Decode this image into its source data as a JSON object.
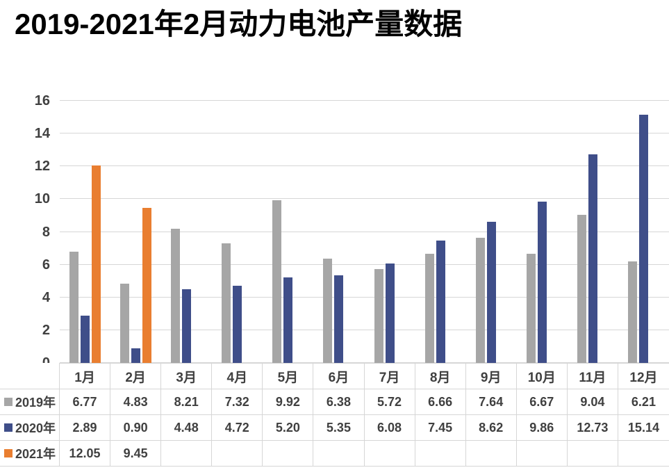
{
  "title": "2019-2021年2月动力电池产量数据",
  "chart_data": {
    "type": "bar",
    "title": "2019-2021年2月动力电池产量数据",
    "categories": [
      "1月",
      "2月",
      "3月",
      "4月",
      "5月",
      "6月",
      "7月",
      "8月",
      "9月",
      "10月",
      "11月",
      "12月"
    ],
    "series": [
      {
        "name": "2019年",
        "color": "#a6a6a6",
        "values": [
          6.77,
          4.83,
          8.21,
          7.32,
          9.92,
          6.38,
          5.72,
          6.66,
          7.64,
          6.67,
          9.04,
          6.21
        ]
      },
      {
        "name": "2020年",
        "color": "#3f4e89",
        "values": [
          2.89,
          0.9,
          4.48,
          4.72,
          5.2,
          5.35,
          6.08,
          7.45,
          8.62,
          9.86,
          12.73,
          15.14
        ]
      },
      {
        "name": "2021年",
        "color": "#e97e30",
        "values": [
          12.05,
          9.45,
          null,
          null,
          null,
          null,
          null,
          null,
          null,
          null,
          null,
          null
        ]
      }
    ],
    "xlabel": "",
    "ylabel": "",
    "ylim": [
      0,
      16
    ],
    "ytick_step": 2,
    "grid": "horizontal",
    "legend_position": "data-table-left",
    "value_decimals": 2,
    "colors": {
      "grid_line": "#d6d6d6",
      "axis_text": "#404040",
      "table_border": "#d6d6d6",
      "table_text": "#404040",
      "title_text": "#000000",
      "background": "#ffffff"
    }
  }
}
